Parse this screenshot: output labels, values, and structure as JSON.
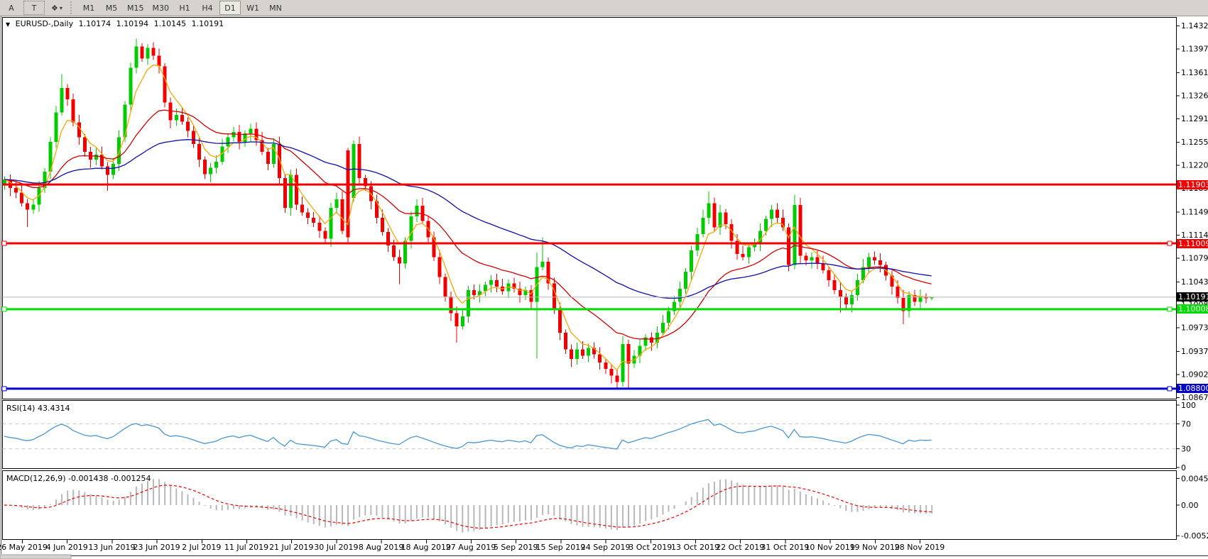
{
  "toolbar": {
    "tools": [
      {
        "label": "A",
        "name": "cursor-tool"
      },
      {
        "label": "T",
        "name": "text-tool",
        "dashed": true
      },
      {
        "label": "❖",
        "name": "shapes-tool",
        "dropdown": true
      }
    ],
    "timeframes": [
      "M1",
      "M5",
      "M15",
      "M30",
      "H1",
      "H4",
      "D1",
      "W1",
      "MN"
    ],
    "active_timeframe": "D1"
  },
  "header": {
    "collapse_icon": "▼",
    "symbol": "EURUSD-,Daily",
    "open": "1.10174",
    "high": "1.10194",
    "low": "1.10145",
    "close": "1.10191"
  },
  "indicators": {
    "rsi": {
      "name": "RSI(14)",
      "value": "43.4314",
      "period": 14,
      "axis": [
        {
          "label": "100",
          "value": 100
        },
        {
          "label": "70",
          "value": 70
        },
        {
          "label": "30",
          "value": 30
        },
        {
          "label": "0",
          "value": 0
        }
      ],
      "dashed_levels": [
        70,
        30
      ],
      "color": "#4a96d2"
    },
    "macd": {
      "name": "MACD(12,26,9)",
      "main": "-0.001438",
      "signal": "-0.001254",
      "fast": 12,
      "slow": 26,
      "signal_period": 9,
      "axis": [
        {
          "label": "0.004536",
          "value": 0.004536
        },
        {
          "label": "0.00",
          "value": 0
        },
        {
          "label": "-0.005205",
          "value": -0.005205
        }
      ],
      "hist_color": "#b8b8b8",
      "signal_color": "#ee0000"
    }
  },
  "chart_data": {
    "type": "candlestick",
    "title": "EURUSD- Daily",
    "ylim": [
      1.0867,
      1.1432
    ],
    "price_ticks": [
      "1.14320",
      "1.13970",
      "1.13610",
      "1.13260",
      "1.12910",
      "1.12550",
      "1.12200",
      "1.11850",
      "1.11490",
      "1.11140",
      "1.10790",
      "1.10430",
      "1.10080",
      "1.09730",
      "1.09370",
      "1.09020",
      "1.08670"
    ],
    "time_ticks": [
      "26 May 2019",
      "4 Jun 2019",
      "13 Jun 2019",
      "23 Jun 2019",
      "2 Jul 2019",
      "11 Jul 2019",
      "21 Jul 2019",
      "30 Jul 2019",
      "8 Aug 2019",
      "18 Aug 2019",
      "27 Aug 2019",
      "5 Sep 2019",
      "15 Sep 2019",
      "24 Sep 2019",
      "3 Oct 2019",
      "13 Oct 2019",
      "22 Oct 2019",
      "31 Oct 2019",
      "10 Nov 2019",
      "19 Nov 2019",
      "28 Nov 2019"
    ],
    "current_price": {
      "value": 1.10191,
      "label": "1.10191",
      "line_color": "#b8b8b8",
      "label_bg": "#000000"
    },
    "hlines": [
      {
        "price": 1.11903,
        "label": "1.11903",
        "color": "#f20000",
        "selected": false
      },
      {
        "price": 1.11009,
        "label": "1.11009",
        "color": "#f20000",
        "selected": true
      },
      {
        "price": 1.10008,
        "label": "1.10008",
        "color": "#00dc00",
        "selected": true
      },
      {
        "price": 1.088,
        "label": "1.08800",
        "color": "#0000c8",
        "selected": true
      }
    ],
    "moving_averages": [
      {
        "name": "ma-fast",
        "period": 5,
        "color": "#ffa500"
      },
      {
        "name": "ma-medium",
        "period": 21,
        "color": "#d40000"
      },
      {
        "name": "ma-slow",
        "period": 55,
        "color": "#1010a8"
      }
    ],
    "candle_colors": {
      "up": "#00cc00",
      "down": "#f20000"
    },
    "first_open": 1.119,
    "open_rule": "open[i] = close[i-1] unless overridden",
    "open_overrides": {
      "60": 1.1242,
      "61": 1.117
    },
    "wick_overrides": {
      "4": {
        "l": 1.1126
      },
      "10": {
        "h": 1.1358
      },
      "18": {
        "l": 1.1181
      },
      "23": {
        "h": 1.1412
      },
      "24": {
        "h": 1.1405
      },
      "60": {
        "h": 1.1246,
        "l": 1.11
      },
      "61": {
        "h": 1.1258
      },
      "69": {
        "l": 1.1039
      },
      "79": {
        "l": 1.095
      },
      "93": {
        "l": 1.0926,
        "h": 1.1087
      },
      "94": {
        "h": 1.111
      },
      "108": {
        "l": 1.0883
      },
      "109": {
        "l": 1.0879
      },
      "123": {
        "h": 1.118
      },
      "138": {
        "h": 1.1175
      },
      "146": {
        "l": 1.0996
      },
      "157": {
        "l": 1.0978
      },
      "162": {
        "h": 1.10194,
        "l": 1.10145
      }
    },
    "closes": [
      1.1198,
      1.1185,
      1.1178,
      1.1162,
      1.1152,
      1.116,
      1.1185,
      1.121,
      1.1255,
      1.13,
      1.1337,
      1.132,
      1.1285,
      1.1262,
      1.124,
      1.1228,
      1.1236,
      1.1218,
      1.1205,
      1.1222,
      1.1262,
      1.1312,
      1.1368,
      1.14,
      1.1382,
      1.1398,
      1.1386,
      1.137,
      1.1315,
      1.1288,
      1.1296,
      1.1286,
      1.1272,
      1.1252,
      1.1228,
      1.1206,
      1.1216,
      1.1225,
      1.1248,
      1.1262,
      1.127,
      1.1255,
      1.1268,
      1.1275,
      1.1258,
      1.124,
      1.1222,
      1.1252,
      1.12,
      1.1155,
      1.1205,
      1.116,
      1.1148,
      1.114,
      1.1132,
      1.112,
      1.1108,
      1.1155,
      1.1168,
      1.112,
      1.111,
      1.1252,
      1.12,
      1.1188,
      1.1165,
      1.114,
      1.1118,
      1.1098,
      1.108,
      1.107,
      1.1105,
      1.1142,
      1.1158,
      1.1135,
      1.111,
      1.108,
      1.105,
      1.102,
      1.0995,
      1.0975,
      1.099,
      1.103,
      1.1022,
      1.1028,
      1.1038,
      1.1045,
      1.1035,
      1.1028,
      1.104,
      1.1032,
      1.1022,
      1.103,
      1.1012,
      1.1065,
      1.1073,
      1.104,
      1.1,
      1.0965,
      1.094,
      1.0925,
      1.094,
      1.093,
      1.0942,
      1.0932,
      1.092,
      1.091,
      1.09,
      1.089,
      1.0948,
      1.0918,
      1.093,
      1.0945,
      1.0958,
      1.095,
      1.0965,
      1.098,
      1.0998,
      1.1012,
      1.1032,
      1.1058,
      1.109,
      1.1115,
      1.114,
      1.1162,
      1.1125,
      1.1148,
      1.113,
      1.1105,
      1.1085,
      1.108,
      1.1095,
      1.11,
      1.112,
      1.1138,
      1.1152,
      1.114,
      1.1125,
      1.1068,
      1.1159,
      1.1082,
      1.1075,
      1.108,
      1.107,
      1.106,
      1.1045,
      1.103,
      1.102,
      1.1008,
      1.1022,
      1.1045,
      1.1065,
      1.108,
      1.1075,
      1.1068,
      1.1052,
      1.1035,
      1.1018,
      1.0998,
      1.1022,
      1.1012,
      1.102,
      1.10174,
      1.10191
    ]
  }
}
